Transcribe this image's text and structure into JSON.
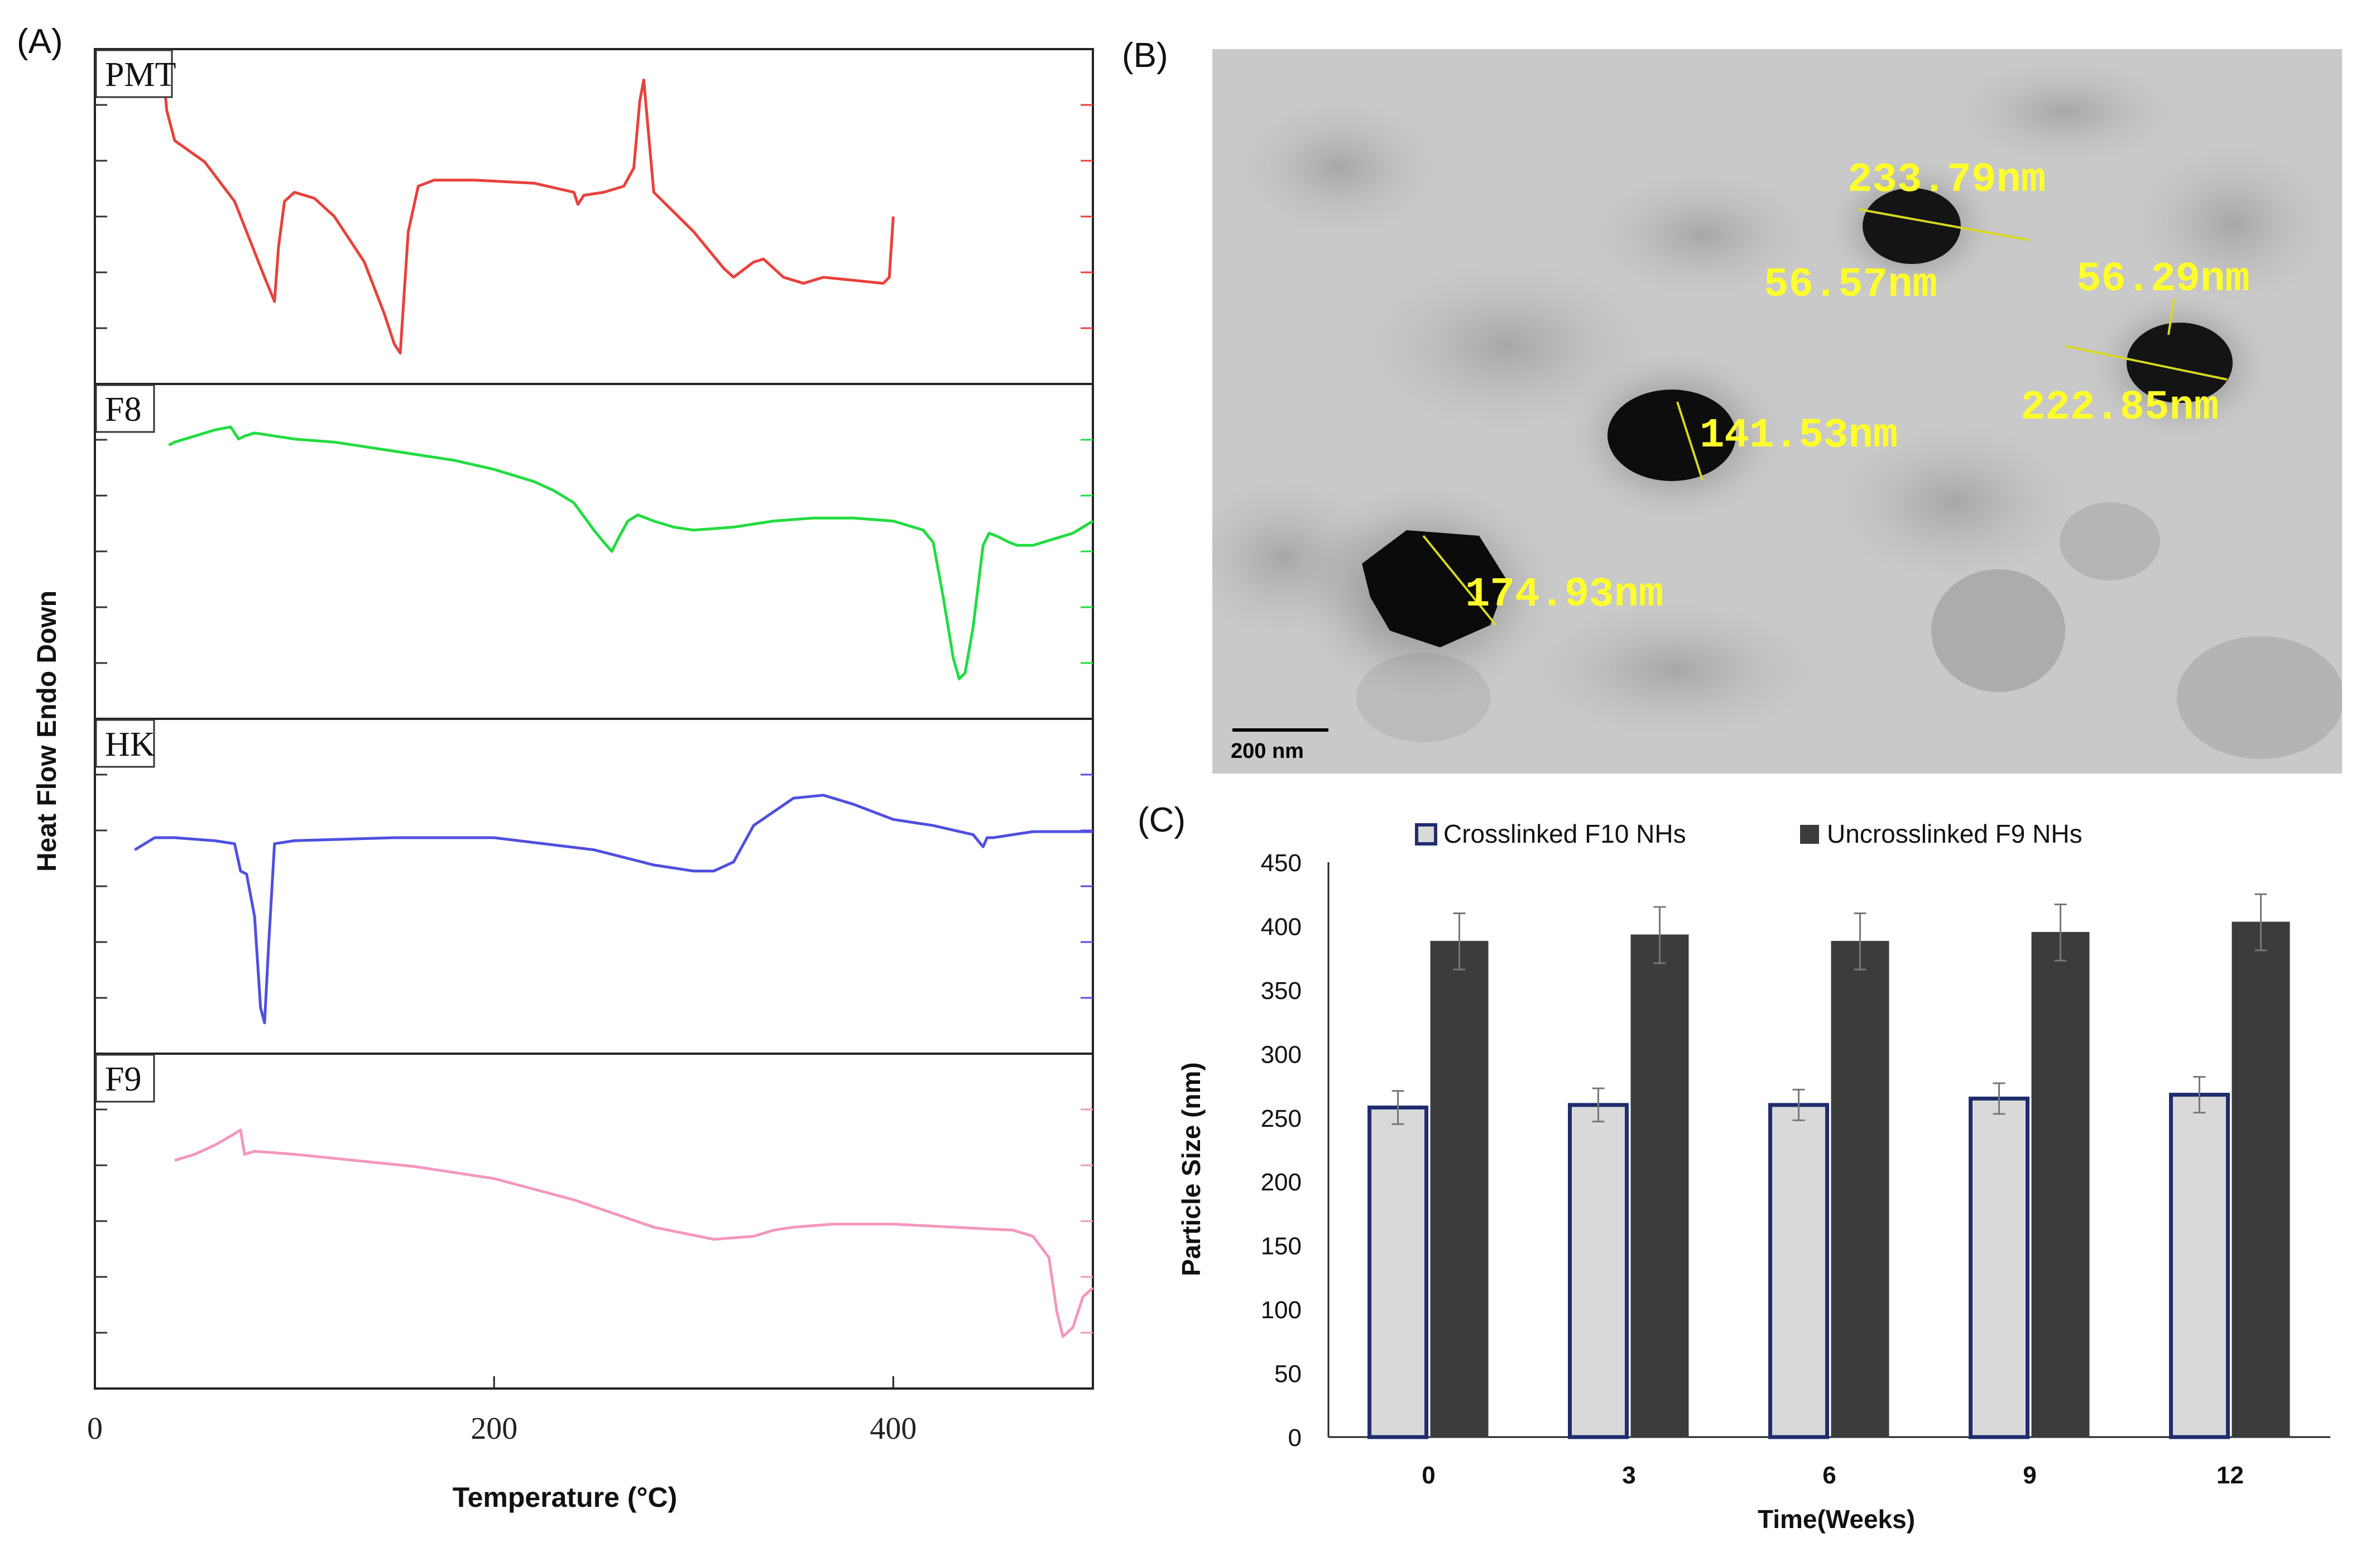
{
  "panel_labels": {
    "a": "(A)",
    "b": "(B)",
    "c": "(C)"
  },
  "chart_data": [
    {
      "panel": "(A)",
      "type": "line",
      "title": "",
      "xlabel": "Temperature (°C)",
      "ylabel": "Heat Flow Endo Down",
      "xlim": [
        0,
        500
      ],
      "x_ticks": [
        "0",
        "200",
        "400"
      ],
      "x_tick_values": [
        0,
        200,
        400
      ],
      "series": [
        {
          "name": "PMT",
          "color": "#e8413c",
          "ylim": [
            0,
            100
          ],
          "x": [
            34,
            36,
            40,
            55,
            70,
            85,
            90,
            92,
            95,
            100,
            110,
            120,
            135,
            145,
            150,
            153,
            157,
            162,
            170,
            190,
            220,
            240,
            242,
            245,
            255,
            265,
            270,
            273,
            275,
            277,
            280,
            300,
            315,
            320,
            330,
            335,
            345,
            355,
            365,
            380,
            395,
            398,
            400
          ],
          "y": [
            100,
            85,
            75,
            68,
            55,
            30,
            22,
            40,
            55,
            58,
            56,
            50,
            35,
            18,
            8,
            5,
            45,
            60,
            62,
            62,
            61,
            58,
            54,
            57,
            58,
            60,
            66,
            88,
            95,
            80,
            58,
            45,
            33,
            30,
            35,
            36,
            30,
            28,
            30,
            29,
            28,
            30,
            50
          ]
        },
        {
          "name": "F8",
          "color": "#22dc40",
          "ylim": [
            0,
            100
          ],
          "x": [
            37,
            40,
            50,
            60,
            68,
            72,
            75,
            80,
            100,
            120,
            140,
            160,
            180,
            200,
            220,
            230,
            240,
            250,
            255,
            259,
            262,
            267,
            272,
            280,
            290,
            300,
            320,
            340,
            360,
            380,
            400,
            415,
            420,
            425,
            430,
            433,
            436,
            440,
            445,
            448,
            452,
            458,
            462,
            470,
            480,
            490,
            500
          ],
          "y": [
            85,
            86,
            88,
            90,
            91,
            87,
            88,
            89,
            87,
            86,
            84,
            82,
            80,
            77,
            73,
            70,
            66,
            57,
            53,
            50,
            54,
            60,
            62,
            60,
            58,
            57,
            58,
            60,
            61,
            61,
            60,
            57,
            53,
            35,
            15,
            8,
            10,
            25,
            52,
            56,
            55,
            53,
            52,
            52,
            54,
            56,
            60
          ]
        },
        {
          "name": "HK",
          "color": "#4f4fe0",
          "ylim": [
            0,
            100
          ],
          "x": [
            20,
            25,
            30,
            40,
            60,
            70,
            73,
            76,
            80,
            83,
            85,
            87,
            90,
            100,
            150,
            200,
            250,
            280,
            300,
            310,
            320,
            330,
            350,
            365,
            380,
            400,
            420,
            440,
            445,
            447,
            450,
            470,
            500
          ],
          "y": [
            62,
            64,
            66,
            66,
            65,
            64,
            55,
            54,
            40,
            10,
            5,
            30,
            64,
            65,
            66,
            66,
            62,
            57,
            55,
            55,
            58,
            70,
            79,
            80,
            77,
            72,
            70,
            67,
            63,
            66,
            66,
            68,
            68
          ]
        },
        {
          "name": "F9",
          "color": "#f497bd",
          "ylim": [
            0,
            100
          ],
          "x": [
            40,
            50,
            60,
            68,
            73,
            75,
            80,
            100,
            130,
            160,
            200,
            240,
            280,
            310,
            330,
            340,
            350,
            370,
            400,
            430,
            460,
            470,
            478,
            482,
            485,
            490,
            495,
            500
          ],
          "y": [
            70,
            72,
            75,
            78,
            80,
            72,
            73,
            72,
            70,
            68,
            64,
            57,
            48,
            44,
            45,
            47,
            48,
            49,
            49,
            48,
            47,
            45,
            38,
            20,
            12,
            15,
            25,
            28
          ]
        }
      ]
    },
    {
      "panel": "(B)",
      "type": "image-annotations",
      "measurements": [
        "233.79nm",
        "56.57nm",
        "56.29nm",
        "141.53nm",
        "222.85nm",
        "174.93nm"
      ],
      "scale_bar": "200 nm"
    },
    {
      "panel": "(C)",
      "type": "bar",
      "title": "",
      "xlabel": "Time(Weeks)",
      "ylabel": "Particle Size (nm)",
      "ylim": [
        0,
        450
      ],
      "y_ticks": [
        "0",
        "50",
        "100",
        "150",
        "200",
        "250",
        "300",
        "350",
        "400",
        "450"
      ],
      "y_tick_values": [
        0,
        50,
        100,
        150,
        200,
        250,
        300,
        350,
        400,
        450
      ],
      "categories": [
        "0",
        "3",
        "6",
        "9",
        "12"
      ],
      "series": [
        {
          "name": "Crosslinked F10 NHs",
          "fill": "#d9d9d9",
          "stroke": "#1f2d6e",
          "values": [
            258,
            260,
            260,
            265,
            268
          ],
          "errors": [
            13,
            13,
            12,
            12,
            14
          ]
        },
        {
          "name": "Uncrosslinked F9 NHs",
          "fill": "#3c3c3c",
          "stroke": "#3c3c3c",
          "values": [
            388,
            393,
            388,
            395,
            403
          ],
          "errors": [
            22,
            22,
            22,
            22,
            22
          ]
        }
      ],
      "legend_position": "top"
    }
  ]
}
